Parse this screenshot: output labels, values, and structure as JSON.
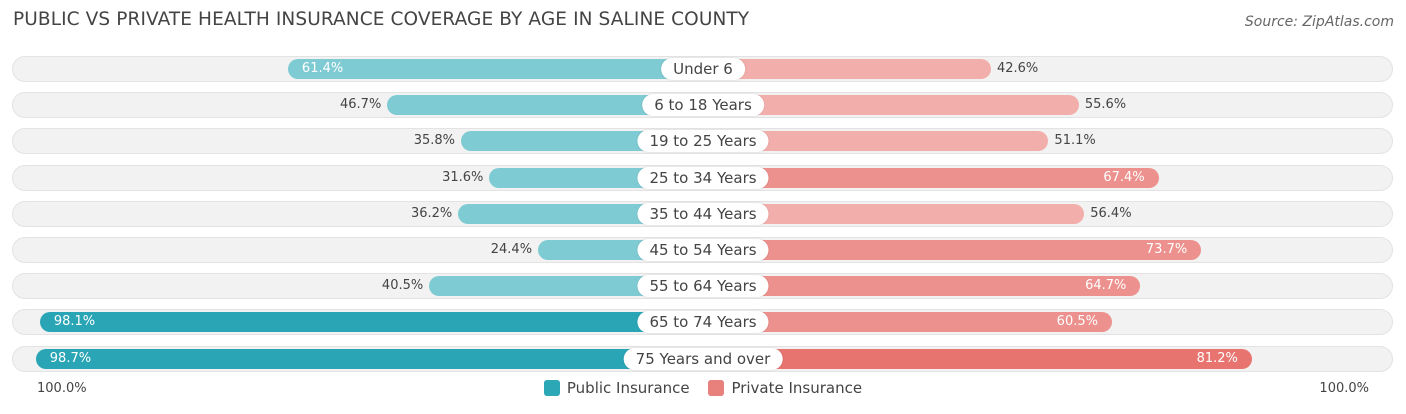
{
  "title": "PUBLIC VS PRIVATE HEALTH INSURANCE COVERAGE BY AGE IN SALINE COUNTY",
  "source": "Source: ZipAtlas.com",
  "axis_left_label": "100.0%",
  "axis_right_label": "100.0%",
  "colors": {
    "public": "#29a5b5",
    "public_light": "#7fcbd3",
    "private": "#e8746f",
    "private_light": "#f2aeaa",
    "track": "#f2f2f2"
  },
  "legend": [
    {
      "label": "Public Insurance",
      "color": "#2ba7b6"
    },
    {
      "label": "Private Insurance",
      "color": "#e8807b"
    }
  ],
  "chart_data": {
    "type": "bar",
    "orientation": "horizontal-diverging",
    "title": "PUBLIC VS PRIVATE HEALTH INSURANCE COVERAGE BY AGE IN SALINE COUNTY",
    "categories": [
      "Under 6",
      "6 to 18 Years",
      "19 to 25 Years",
      "25 to 34 Years",
      "35 to 44 Years",
      "45 to 54 Years",
      "55 to 64 Years",
      "65 to 74 Years",
      "75 Years and over"
    ],
    "series": [
      {
        "name": "Public Insurance",
        "values": [
          61.4,
          46.7,
          35.8,
          31.6,
          36.2,
          24.4,
          40.5,
          98.1,
          98.7
        ],
        "labels": [
          "61.4%",
          "46.7%",
          "35.8%",
          "31.6%",
          "36.2%",
          "24.4%",
          "40.5%",
          "98.1%",
          "98.7%"
        ]
      },
      {
        "name": "Private Insurance",
        "values": [
          42.6,
          55.6,
          51.1,
          67.4,
          56.4,
          73.7,
          64.7,
          60.5,
          81.2
        ],
        "labels": [
          "42.6%",
          "55.6%",
          "51.1%",
          "67.4%",
          "56.4%",
          "73.7%",
          "64.7%",
          "60.5%",
          "81.2%"
        ]
      }
    ],
    "xlim": [
      -100,
      100
    ],
    "legend_position": "bottom-center"
  }
}
